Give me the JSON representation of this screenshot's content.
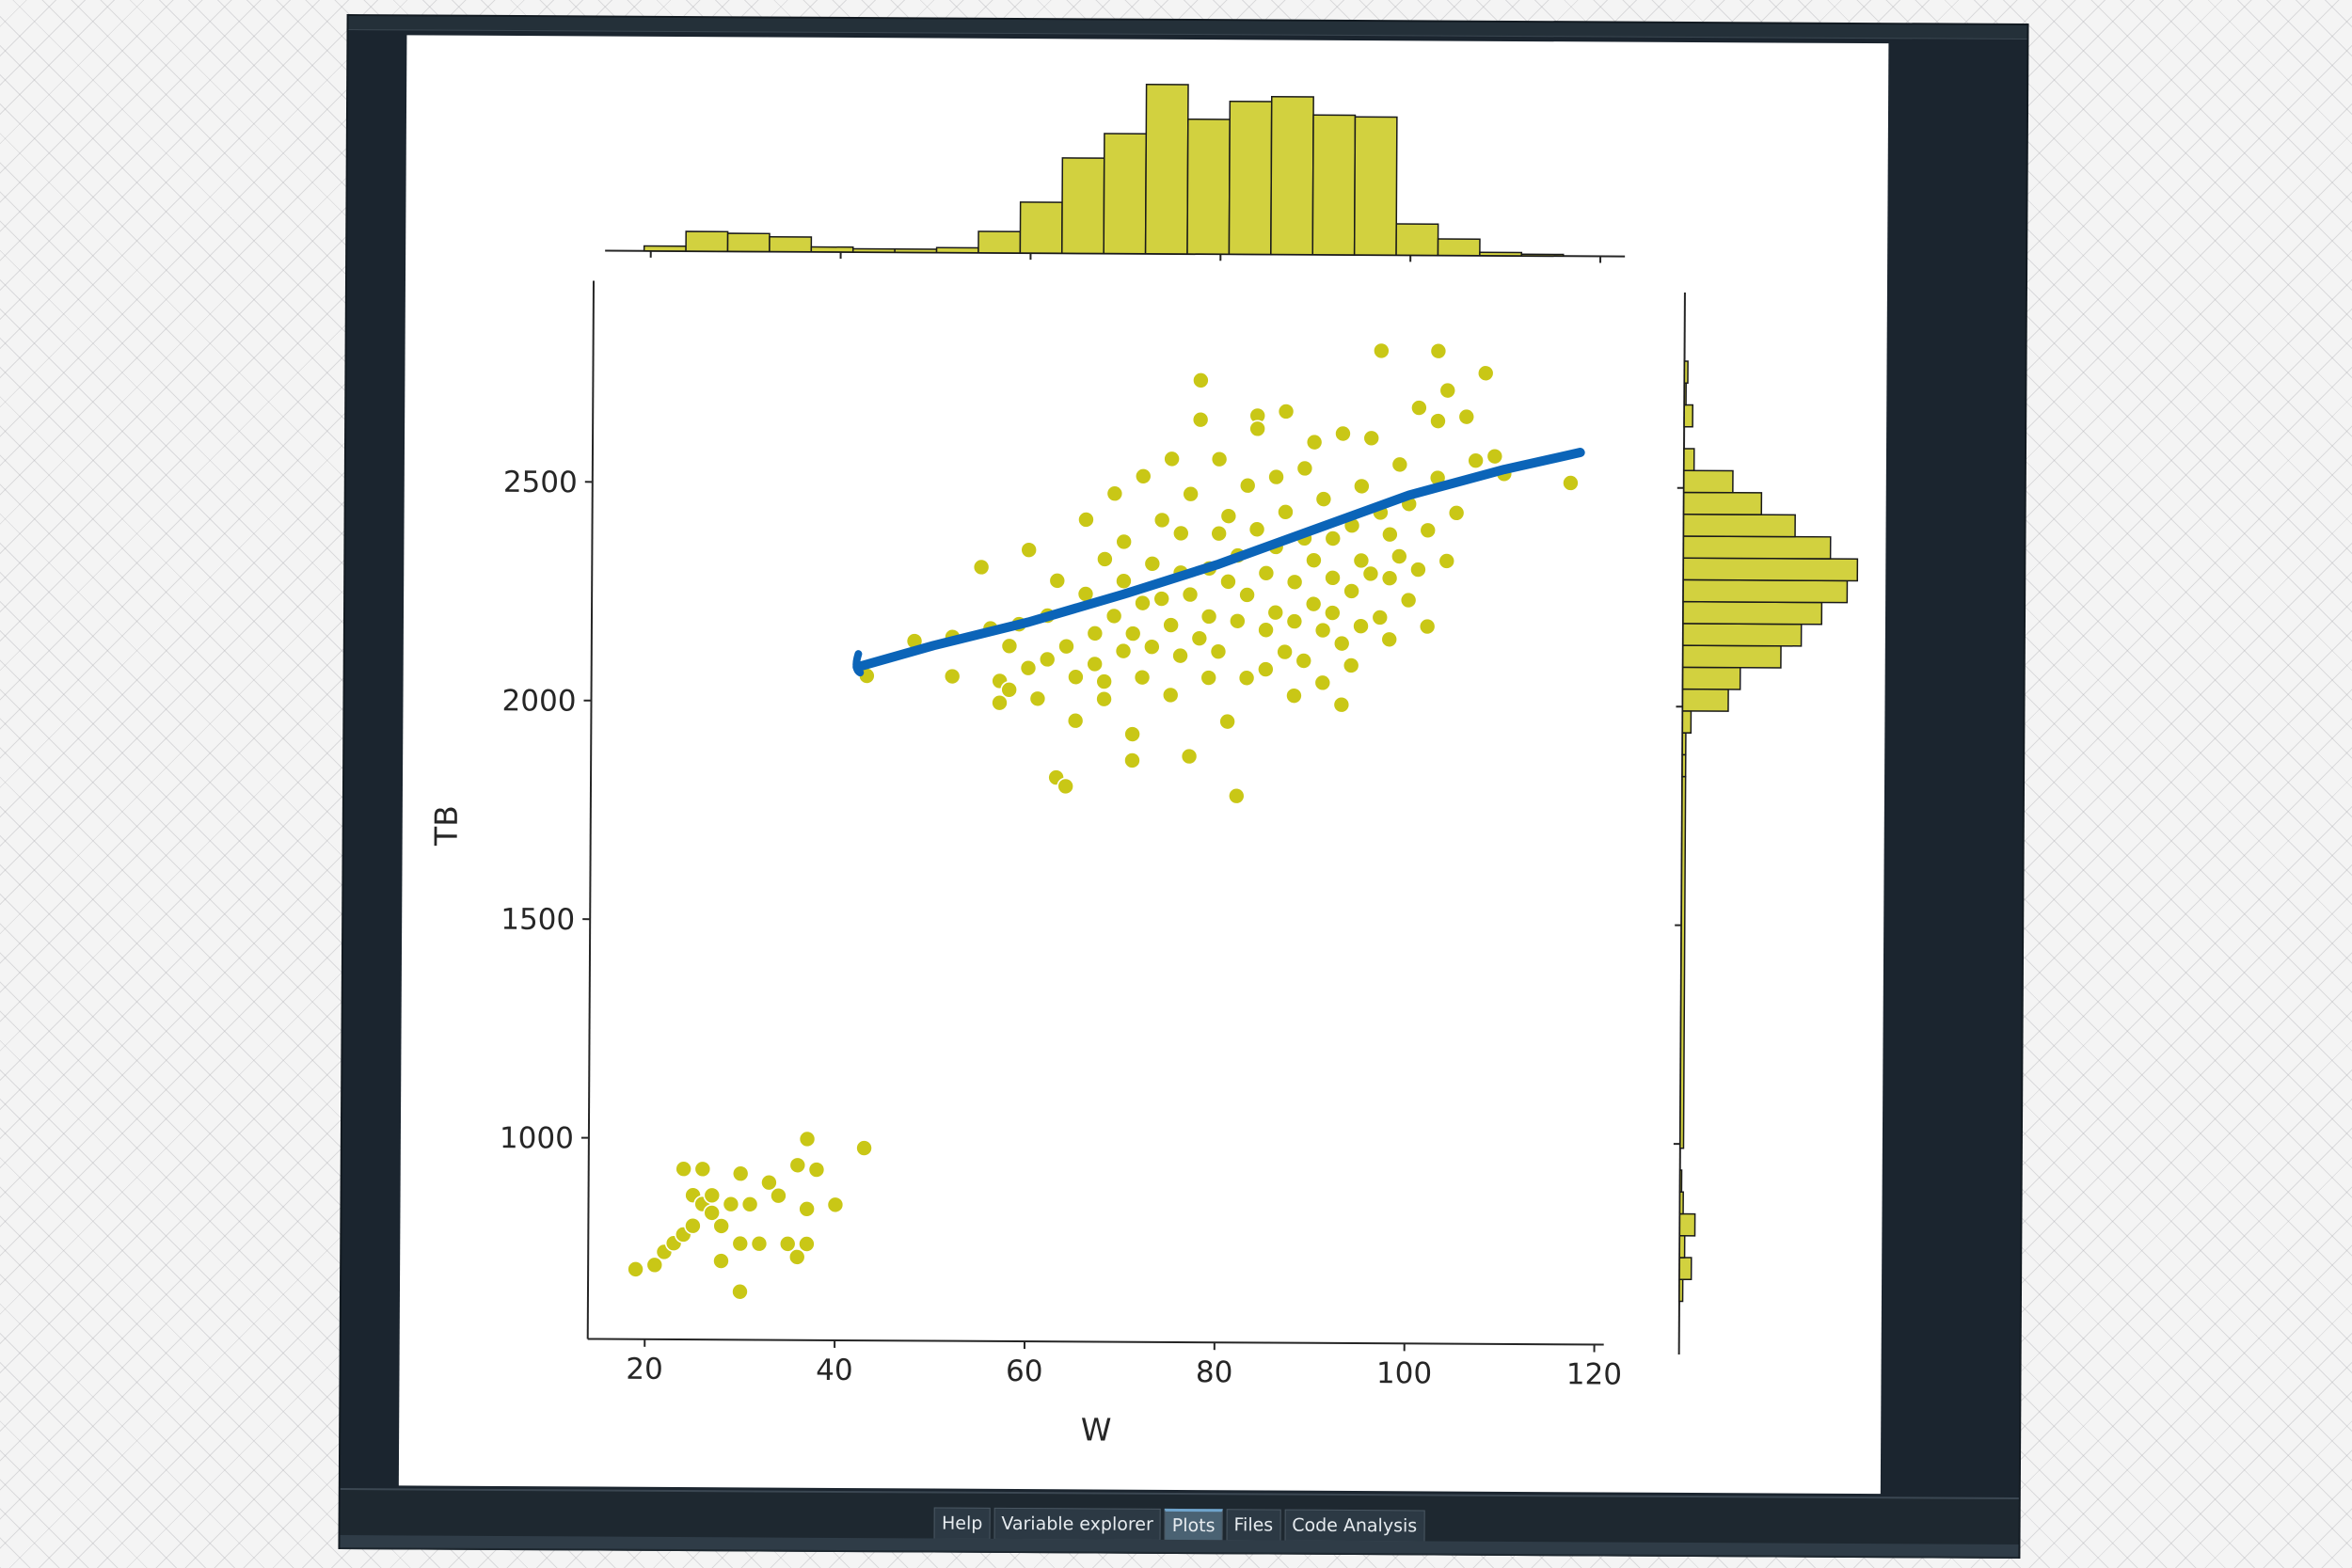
{
  "panel": {
    "tabs": [
      {
        "label": "Help",
        "active": false
      },
      {
        "label": "Variable explorer",
        "active": false
      },
      {
        "label": "Plots",
        "active": true
      },
      {
        "label": "Files",
        "active": false
      },
      {
        "label": "Code Analysis",
        "active": false
      }
    ]
  },
  "colors": {
    "points": "#c9c716",
    "hist_fill": "#d2d13f",
    "hist_edge": "#1a1a1a",
    "annotation": "#0b64b8",
    "ide_background": "#1b252f"
  },
  "chart_data": {
    "type": "scatter",
    "title": "",
    "xlabel": "W",
    "ylabel": "TB",
    "xlim": [
      14,
      121
    ],
    "ylim": [
      540,
      2960
    ],
    "xticks": [
      20,
      40,
      60,
      80,
      100,
      120
    ],
    "yticks": [
      1000,
      1500,
      2000,
      2500
    ],
    "grid": false,
    "marginal_histograms": true,
    "hist_x": {
      "bin_edges": [
        19.3,
        23.7,
        28.1,
        32.5,
        36.9,
        41.3,
        45.7,
        50.1,
        54.5,
        58.9,
        63.3,
        67.7,
        72.1,
        76.5,
        80.9,
        85.3,
        89.7,
        94.1,
        98.5,
        102.9,
        107.3,
        111.7,
        116.1
      ],
      "counts": [
        3,
        12,
        11,
        9,
        3,
        2,
        2,
        3,
        13,
        31,
        58,
        73,
        103,
        82,
        93,
        96,
        85,
        84,
        19,
        10,
        2,
        1
      ]
    },
    "hist_y": {
      "bin_edges": [
        640,
        690,
        740,
        790,
        840,
        890,
        940,
        990,
        1840,
        1890,
        1940,
        1990,
        2040,
        2090,
        2140,
        2190,
        2240,
        2290,
        2340,
        2390,
        2440,
        2490,
        2540,
        2590,
        2640,
        2690,
        2740,
        2790
      ],
      "counts": [
        2,
        7,
        3,
        9,
        2,
        1,
        0,
        2,
        2,
        2,
        5,
        27,
        34,
        58,
        70,
        82,
        97,
        103,
        87,
        66,
        46,
        29,
        6,
        0,
        5,
        1,
        2
      ]
    },
    "points": [
      [
        19,
        700
      ],
      [
        21,
        710
      ],
      [
        22,
        740
      ],
      [
        23,
        760
      ],
      [
        24,
        930
      ],
      [
        24,
        780
      ],
      [
        25,
        800
      ],
      [
        25,
        870
      ],
      [
        26,
        930
      ],
      [
        26,
        850
      ],
      [
        27,
        830
      ],
      [
        27,
        870
      ],
      [
        28,
        720
      ],
      [
        28,
        800
      ],
      [
        29,
        850
      ],
      [
        30,
        920
      ],
      [
        30,
        760
      ],
      [
        30,
        650
      ],
      [
        31,
        850
      ],
      [
        32,
        760
      ],
      [
        33,
        900
      ],
      [
        34,
        870
      ],
      [
        35,
        760
      ],
      [
        36,
        940
      ],
      [
        36,
        730
      ],
      [
        37,
        1000
      ],
      [
        37,
        840
      ],
      [
        37,
        760
      ],
      [
        38,
        930
      ],
      [
        40,
        850
      ],
      [
        43,
        980
      ],
      [
        43,
        2060
      ],
      [
        48,
        2140
      ],
      [
        52,
        2060
      ],
      [
        52,
        2150
      ],
      [
        55,
        2310
      ],
      [
        56,
        2170
      ],
      [
        57,
        2050
      ],
      [
        57,
        2000
      ],
      [
        58,
        2130
      ],
      [
        58,
        2030
      ],
      [
        59,
        2180
      ],
      [
        60,
        2080
      ],
      [
        60,
        2350
      ],
      [
        61,
        2010
      ],
      [
        62,
        2100
      ],
      [
        62,
        2200
      ],
      [
        63,
        2280
      ],
      [
        63,
        1830
      ],
      [
        64,
        1810
      ],
      [
        64,
        2130
      ],
      [
        65,
        2060
      ],
      [
        65,
        1960
      ],
      [
        66,
        2250
      ],
      [
        66,
        2420
      ],
      [
        67,
        2160
      ],
      [
        67,
        2090
      ],
      [
        68,
        2330
      ],
      [
        68,
        2050
      ],
      [
        68,
        2010
      ],
      [
        69,
        2200
      ],
      [
        69,
        2480
      ],
      [
        70,
        2120
      ],
      [
        70,
        2280
      ],
      [
        70,
        2370
      ],
      [
        71,
        1870
      ],
      [
        71,
        1930
      ],
      [
        71,
        2160
      ],
      [
        72,
        2230
      ],
      [
        72,
        2520
      ],
      [
        72,
        2060
      ],
      [
        73,
        2320
      ],
      [
        73,
        2130
      ],
      [
        74,
        2420
      ],
      [
        74,
        2240
      ],
      [
        75,
        2560
      ],
      [
        75,
        2180
      ],
      [
        75,
        2020
      ],
      [
        76,
        2300
      ],
      [
        76,
        2390
      ],
      [
        76,
        2110
      ],
      [
        77,
        1880
      ],
      [
        77,
        2250
      ],
      [
        77,
        2480
      ],
      [
        78,
        2150
      ],
      [
        78,
        2740
      ],
      [
        78,
        2650
      ],
      [
        79,
        2310
      ],
      [
        79,
        2200
      ],
      [
        79,
        2060
      ],
      [
        80,
        2560
      ],
      [
        80,
        2390
      ],
      [
        80,
        2120
      ],
      [
        81,
        1960
      ],
      [
        81,
        2280
      ],
      [
        81,
        2430
      ],
      [
        82,
        2190
      ],
      [
        82,
        2340
      ],
      [
        82,
        1790
      ],
      [
        83,
        2250
      ],
      [
        83,
        2500
      ],
      [
        83,
        2060
      ],
      [
        84,
        2660
      ],
      [
        84,
        2630
      ],
      [
        84,
        2400
      ],
      [
        85,
        2170
      ],
      [
        85,
        2300
      ],
      [
        85,
        2080
      ],
      [
        86,
        2520
      ],
      [
        86,
        2210
      ],
      [
        86,
        2360
      ],
      [
        87,
        2120
      ],
      [
        87,
        2670
      ],
      [
        87,
        2440
      ],
      [
        88,
        2280
      ],
      [
        88,
        2190
      ],
      [
        88,
        2020
      ],
      [
        89,
        2380
      ],
      [
        89,
        2540
      ],
      [
        89,
        2100
      ],
      [
        90,
        2230
      ],
      [
        90,
        2330
      ],
      [
        90,
        2600
      ],
      [
        91,
        2170
      ],
      [
        91,
        2470
      ],
      [
        91,
        2050
      ],
      [
        92,
        2290
      ],
      [
        92,
        2380
      ],
      [
        92,
        2210
      ],
      [
        93,
        2620
      ],
      [
        93,
        2140
      ],
      [
        93,
        2000
      ],
      [
        94,
        2410
      ],
      [
        94,
        2260
      ],
      [
        94,
        2090
      ],
      [
        95,
        2330
      ],
      [
        95,
        2500
      ],
      [
        95,
        2180
      ],
      [
        96,
        2610
      ],
      [
        96,
        2300
      ],
      [
        97,
        2440
      ],
      [
        97,
        2200
      ],
      [
        97,
        2810
      ],
      [
        98,
        2390
      ],
      [
        98,
        2290
      ],
      [
        98,
        2150
      ],
      [
        99,
        2550
      ],
      [
        99,
        2340
      ],
      [
        100,
        2240
      ],
      [
        100,
        2460
      ],
      [
        101,
        2680
      ],
      [
        101,
        2310
      ],
      [
        102,
        2400
      ],
      [
        102,
        2180
      ],
      [
        103,
        2810
      ],
      [
        103,
        2650
      ],
      [
        103,
        2520
      ],
      [
        104,
        2720
      ],
      [
        104,
        2330
      ],
      [
        105,
        2440
      ],
      [
        106,
        2660
      ],
      [
        107,
        2560
      ],
      [
        108,
        2760
      ],
      [
        109,
        2570
      ],
      [
        110,
        2530
      ],
      [
        117,
        2510
      ]
    ],
    "annotation_line": [
      [
        42,
        2080
      ],
      [
        50,
        2130
      ],
      [
        60,
        2185
      ],
      [
        70,
        2250
      ],
      [
        80,
        2320
      ],
      [
        90,
        2400
      ],
      [
        100,
        2480
      ],
      [
        110,
        2540
      ],
      [
        118,
        2580
      ]
    ]
  }
}
